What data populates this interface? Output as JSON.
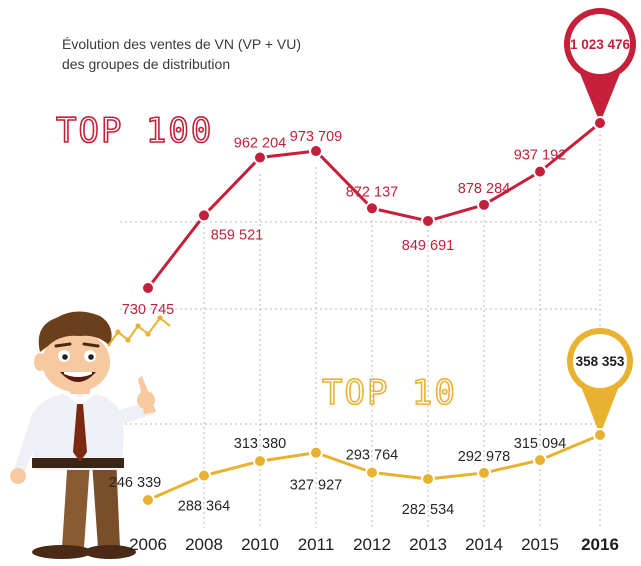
{
  "title": [
    "Évolution des ventes de VN (VP + VU)",
    "des groupes de distribution"
  ],
  "chart_data": {
    "type": "line",
    "categories": [
      "2006",
      "2008",
      "2010",
      "2011",
      "2012",
      "2013",
      "2014",
      "2015",
      "2016"
    ],
    "highlight_category": "2016",
    "series": [
      {
        "name": "TOP 100",
        "color": "#c4203a",
        "values": [
          730745,
          859521,
          962204,
          973709,
          872137,
          849691,
          878284,
          937192,
          1023476
        ],
        "labels": [
          "730 745",
          "859 521",
          "962 204",
          "973 709",
          "872 137",
          "849 691",
          "878 284",
          "937 192",
          "1 023 476"
        ]
      },
      {
        "name": "TOP 10",
        "color": "#e8b231",
        "values": [
          246339,
          288364,
          313380,
          327927,
          293764,
          282534,
          292978,
          315094,
          358353
        ],
        "labels": [
          "246 339",
          "288 364",
          "313 380",
          "327 927",
          "293 764",
          "282 534",
          "292 978",
          "315 094",
          "358 353"
        ]
      }
    ],
    "gridlines": "dashed vertical and horizontal"
  }
}
